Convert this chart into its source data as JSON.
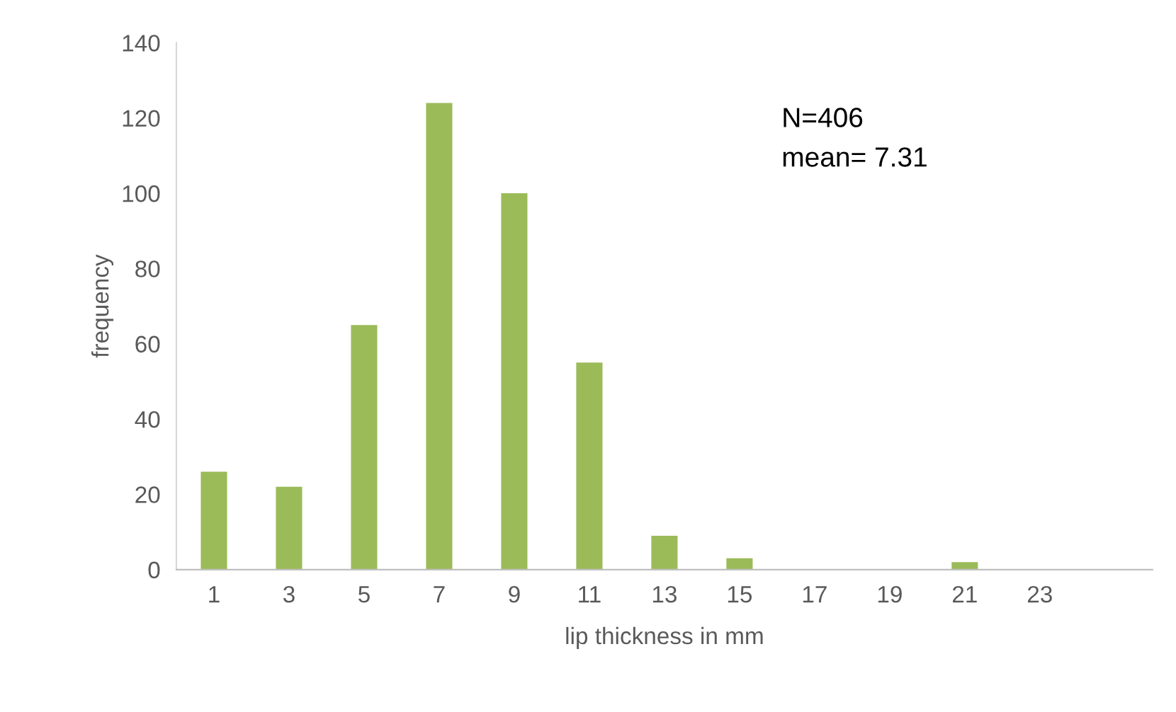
{
  "chart_data": {
    "type": "bar",
    "categories": [
      "1",
      "3",
      "5",
      "7",
      "9",
      "11",
      "13",
      "15",
      "17",
      "19",
      "21",
      "23",
      null
    ],
    "values": [
      26,
      22,
      65,
      124,
      100,
      55,
      9,
      3,
      0,
      0,
      2,
      0,
      0
    ],
    "color": "#9bbb59",
    "xlabel": "lip thickness in mm",
    "ylabel": "frequency",
    "ylim": [
      0,
      140
    ],
    "yticks": [
      0,
      20,
      40,
      60,
      80,
      100,
      120,
      140
    ],
    "annotations": [
      "N=406",
      "mean= 7.31"
    ],
    "grid": false,
    "legend": false
  }
}
